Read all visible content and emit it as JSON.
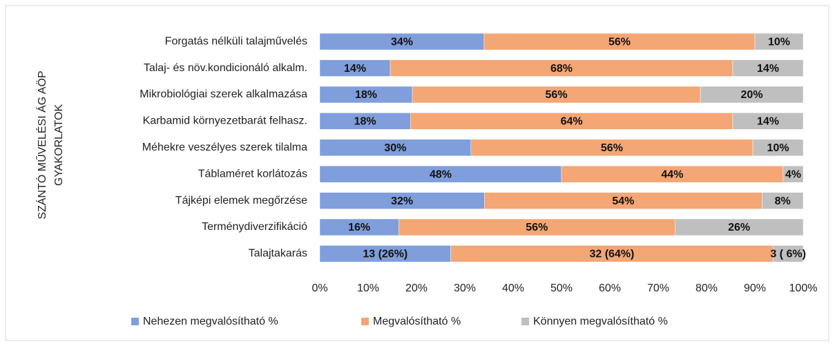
{
  "chart_data": {
    "type": "bar",
    "orientation": "horizontal",
    "stacked": "percent",
    "y_label": [
      "SZÁNTÓ MŰVELÉSI ÁG AÖP",
      "GYAKORLATOK"
    ],
    "categories": [
      "Forgatás nélküli talajművelés",
      "Talaj- és növ.kondicionáló alkalm.",
      "Mikrobiológiai szerek alkalmazása",
      "Karbamid környezetbarát felhasz.",
      "Méhekre veszélyes szerek tilalma",
      "Táblaméret korlátozás",
      "Tájképi elemek megőrzése",
      "Terménydiverzifikáció",
      "Talajtakarás"
    ],
    "series": [
      {
        "name": "Nehezen megvalósítható %",
        "color": "#7f9edb",
        "values": [
          34,
          14,
          18,
          18,
          30,
          48,
          32,
          16,
          26
        ],
        "value_labels": [
          "34%",
          "14%",
          "18%",
          "18%",
          "30%",
          "48%",
          "32%",
          "16%",
          "13  (26%)"
        ]
      },
      {
        "name": "Megvalósítható %",
        "color": "#f4a674",
        "values": [
          56,
          68,
          56,
          64,
          56,
          44,
          54,
          56,
          64
        ],
        "value_labels": [
          "56%",
          "68%",
          "56%",
          "64%",
          "56%",
          "44%",
          "54%",
          "56%",
          "32  (64%)"
        ]
      },
      {
        "name": "Könnyen megvalósítható %",
        "color": "#bfbfbf",
        "values": [
          10,
          14,
          20,
          14,
          10,
          4,
          8,
          26,
          6
        ],
        "value_labels": [
          "10%",
          "14%",
          "20%",
          "14%",
          "10%",
          "4%",
          "8%",
          "26%",
          "3 ( 6%)"
        ]
      }
    ],
    "xlim": [
      0,
      100
    ],
    "xticks": [
      {
        "value": 0,
        "label": "0%"
      },
      {
        "value": 10,
        "label": "10%"
      },
      {
        "value": 20,
        "label": "20%"
      },
      {
        "value": 30,
        "label": "30%"
      },
      {
        "value": 40,
        "label": "40%"
      },
      {
        "value": 50,
        "label": "50%"
      },
      {
        "value": 60,
        "label": "60%"
      },
      {
        "value": 70,
        "label": "70%"
      },
      {
        "value": 80,
        "label": "80%"
      },
      {
        "value": 90,
        "label": "90%"
      },
      {
        "value": 100,
        "label": "100%"
      }
    ],
    "legend": "bottom"
  }
}
